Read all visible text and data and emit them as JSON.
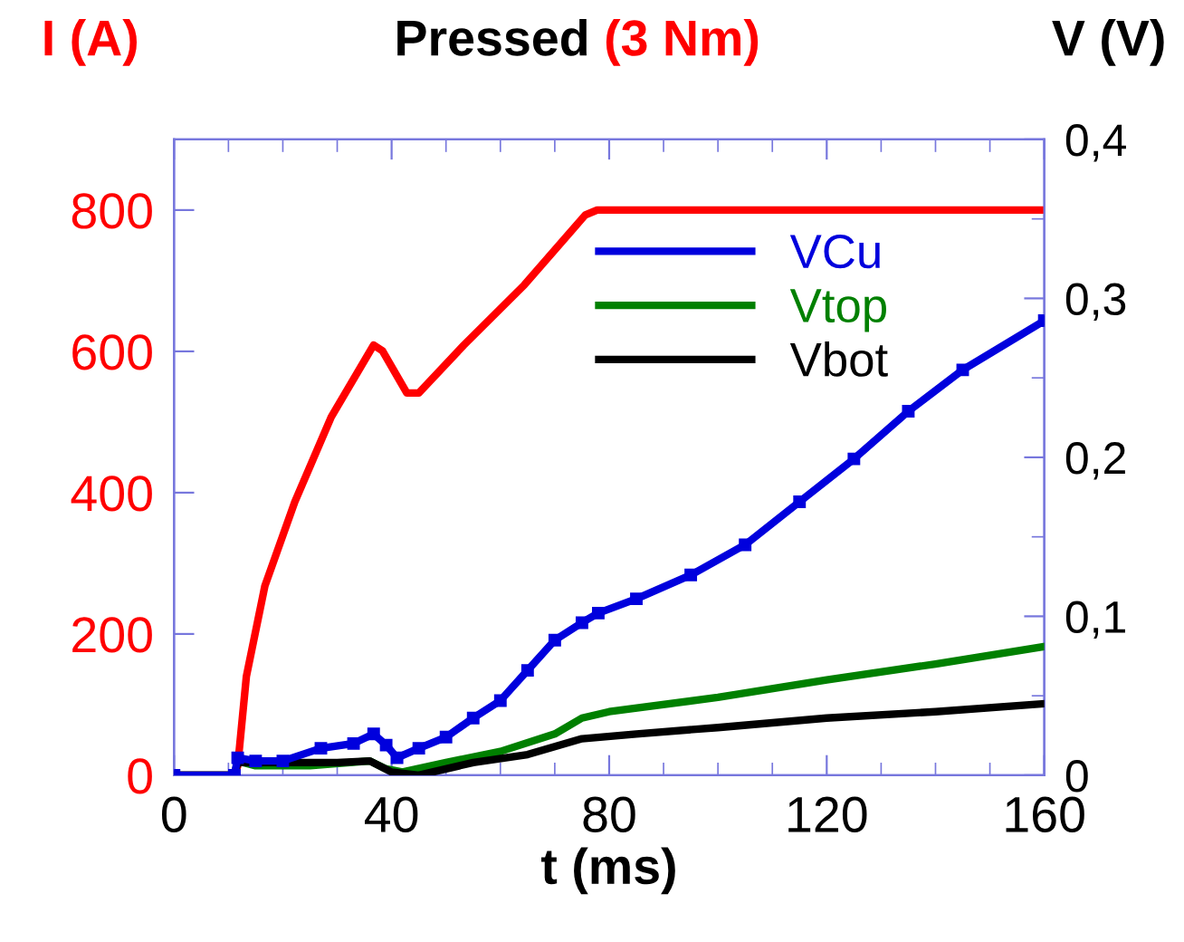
{
  "chart_data": {
    "type": "line",
    "title": "Pressed",
    "subtitle": "(3 Nm)",
    "xlabel": "t (ms)",
    "ylabel": "I (A)",
    "y2label": "V (V)",
    "xlim": [
      0,
      160
    ],
    "xticks": [
      0,
      40,
      80,
      120,
      160
    ],
    "ylim": [
      0,
      900
    ],
    "yticks": [
      0,
      200,
      400,
      600,
      800
    ],
    "y2lim": [
      0,
      0.4
    ],
    "y2ticks": [
      0,
      {
        "value": 0.1,
        "label": "0,1"
      },
      {
        "value": 0.2,
        "label": "0,2"
      },
      {
        "value": 0.3,
        "label": "0,3"
      },
      {
        "value": 0.4,
        "label": "0,4"
      }
    ],
    "grid": false,
    "legend": "top right",
    "line_style": "solid",
    "series": [
      {
        "color": "#ff0000",
        "axis": "y",
        "marker": "none",
        "x": [
          0,
          11.1,
          11.7,
          13.3,
          16.7,
          22.2,
          28.9,
          36.7,
          38.3,
          42.8,
          45,
          53.3,
          64.4,
          75.6,
          77.8,
          160
        ],
        "values": [
          0,
          0,
          13,
          140,
          268,
          387,
          507,
          609,
          601,
          541,
          541,
          609,
          694,
          793,
          800,
          800
        ]
      },
      {
        "name": "VCu",
        "color": "#0000dd",
        "axis": "y2",
        "marker": "square",
        "x": [
          0,
          11.1,
          11.7,
          15,
          20,
          27,
          33,
          36.7,
          39,
          41,
          45,
          50,
          55,
          60,
          65,
          70,
          75,
          78,
          85,
          95,
          105,
          115,
          125,
          135,
          145,
          160
        ],
        "values": [
          0,
          0,
          0.011,
          0.009,
          0.009,
          0.017,
          0.02,
          0.026,
          0.019,
          0.011,
          0.017,
          0.024,
          0.036,
          0.047,
          0.066,
          0.085,
          0.096,
          0.102,
          0.111,
          0.126,
          0.145,
          0.172,
          0.199,
          0.229,
          0.255,
          0.286
        ]
      },
      {
        "name": "Vtop",
        "color": "#008000",
        "axis": "y2",
        "marker": "none",
        "x": [
          0,
          11.1,
          11.7,
          15,
          25,
          36,
          39,
          42,
          50,
          60,
          70,
          75,
          80,
          100,
          120,
          140,
          160
        ],
        "values": [
          0,
          0,
          0.009,
          0.006,
          0.006,
          0.009,
          0.004,
          0.002,
          0.008,
          0.015,
          0.026,
          0.036,
          0.04,
          0.049,
          0.06,
          0.07,
          0.081
        ]
      },
      {
        "name": "Vbot",
        "color": "#000000",
        "axis": "y2",
        "marker": "none",
        "x": [
          0,
          11.1,
          11.7,
          15,
          30,
          36,
          40,
          45,
          55,
          65,
          75,
          85,
          100,
          120,
          140,
          160
        ],
        "values": [
          0,
          0,
          0.008,
          0.008,
          0.008,
          0.009,
          0.002,
          0,
          0.008,
          0.013,
          0.023,
          0.026,
          0.03,
          0.036,
          0.04,
          0.045
        ]
      }
    ]
  }
}
